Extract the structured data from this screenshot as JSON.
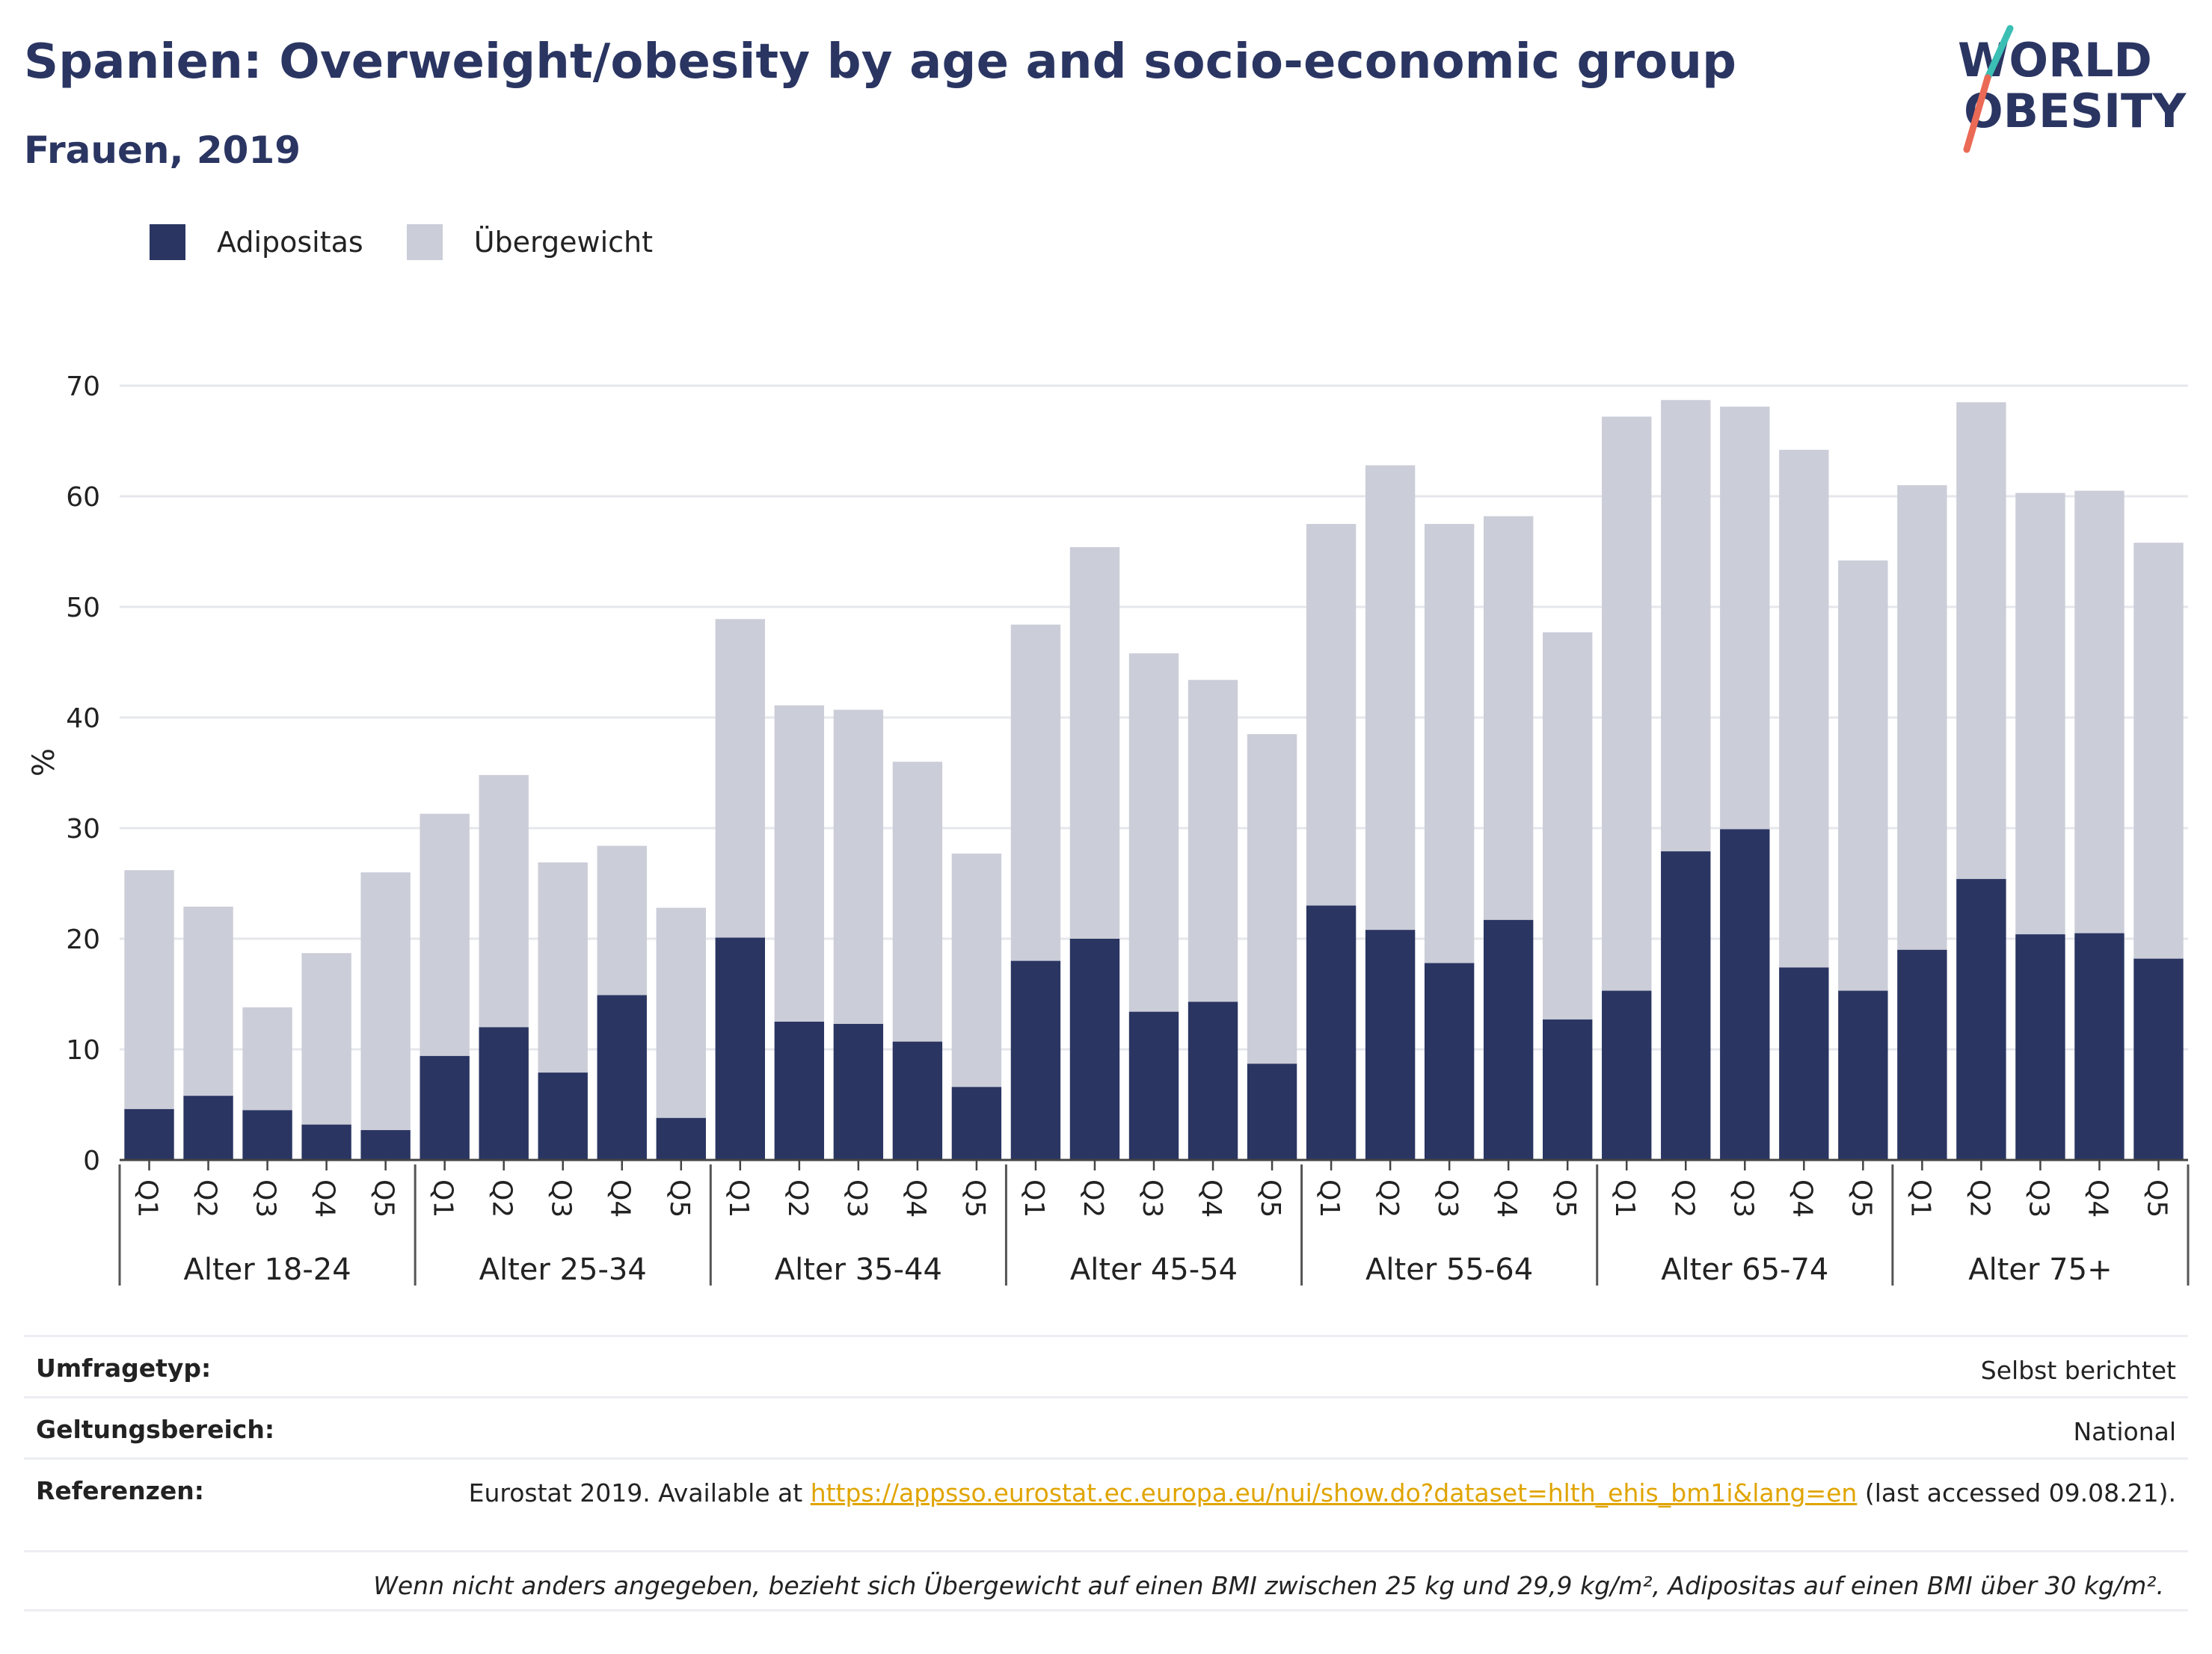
{
  "title": "Spanien: Overweight/obesity by age and socio-economic group",
  "subtitle": "Frauen, 2019",
  "logo": {
    "line1": "WORLD",
    "line2": "OBESITY"
  },
  "legend": [
    {
      "label": "Adipositas",
      "color": "#2a3562"
    },
    {
      "label": "Übergewicht",
      "color": "#cbcdd8"
    }
  ],
  "chart_data": {
    "type": "bar",
    "stacked": true,
    "ylabel": "%",
    "ylim": [
      0,
      70
    ],
    "yticks": [
      0,
      10,
      20,
      30,
      40,
      50,
      60,
      70
    ],
    "grid": true,
    "legend_position": "top-left",
    "quintiles": [
      "Q1",
      "Q2",
      "Q3",
      "Q4",
      "Q5"
    ],
    "groups": [
      "Alter 18-24",
      "Alter 25-34",
      "Alter 35-44",
      "Alter 45-54",
      "Alter 55-64",
      "Alter 65-74",
      "Alter 75+"
    ],
    "series": [
      {
        "name": "Adipositas",
        "color": "#2a3562",
        "values": [
          4.6,
          5.8,
          4.5,
          3.2,
          2.7,
          9.4,
          12.0,
          7.9,
          14.9,
          3.8,
          20.1,
          12.5,
          12.3,
          10.7,
          6.6,
          18.0,
          20.0,
          13.4,
          14.3,
          8.7,
          23.0,
          20.8,
          17.8,
          21.7,
          12.7,
          15.3,
          27.9,
          29.9,
          17.4,
          15.3,
          19.0,
          25.4,
          20.4,
          20.5,
          18.2
        ]
      },
      {
        "name": "Übergewicht",
        "color": "#cbcdd8",
        "values": [
          21.6,
          17.1,
          9.3,
          15.5,
          23.3,
          21.9,
          22.8,
          19.0,
          13.5,
          19.0,
          28.8,
          28.6,
          28.4,
          25.3,
          21.1,
          30.4,
          35.4,
          32.4,
          29.1,
          29.8,
          34.5,
          42.0,
          39.7,
          36.5,
          35.0,
          51.9,
          40.8,
          38.2,
          46.8,
          38.9,
          42.0,
          43.1,
          39.9,
          40.0,
          37.6
        ]
      }
    ]
  },
  "info": {
    "survey_label": "Umfragetyp:",
    "survey_value": "Selbst berichtet",
    "scope_label": "Geltungsbereich:",
    "scope_value": "National",
    "refs_label": "Referenzen:",
    "refs_prefix": "Eurostat 2019. Available at ",
    "refs_link": "https://appsso.eurostat.ec.europa.eu/nui/show.do?dataset=hlth_ehis_bm1i&lang=en",
    "refs_suffix": " (last accessed 09.08.21).",
    "footnote": "Wenn nicht anders angegeben, bezieht sich Übergewicht auf einen BMI zwischen 25 kg und 29,9 kg/m², Adipositas auf einen BMI über 30 kg/m²."
  }
}
